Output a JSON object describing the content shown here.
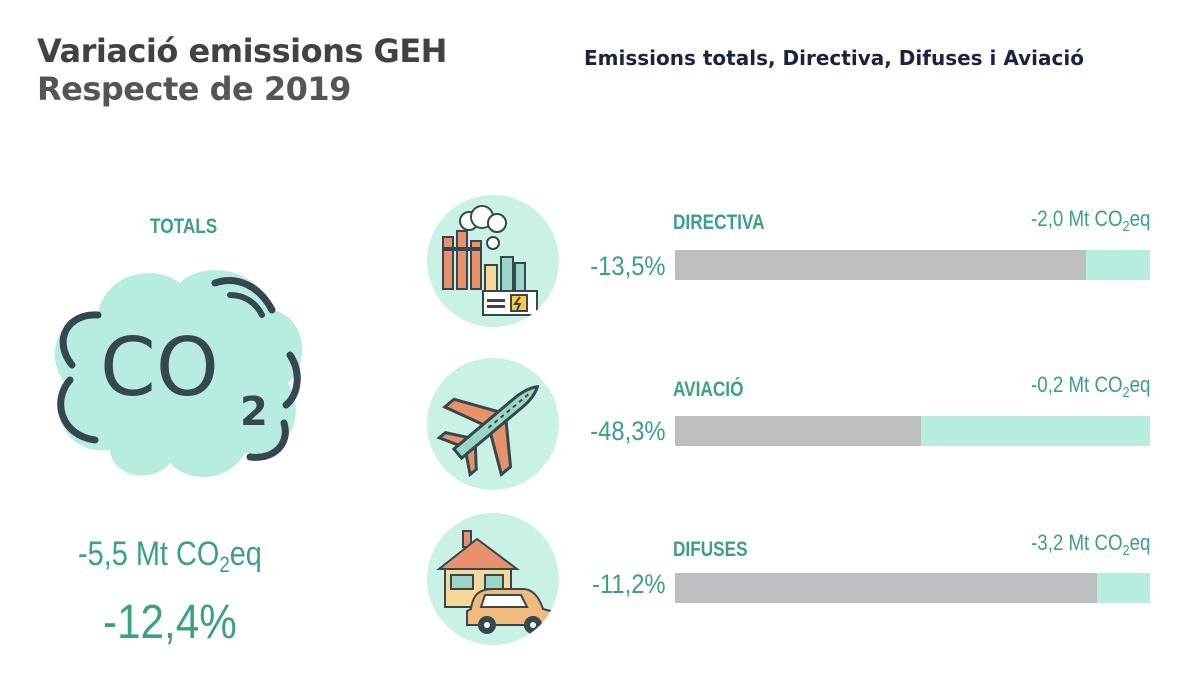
{
  "header": {
    "title": "Variació emissions GEH",
    "subtitle": "Respecte de 2019",
    "right_title": "Emissions totals, Directiva, Difuses i Aviació"
  },
  "colors": {
    "accent": "#3aa187",
    "bar_gray": "#bdbec2",
    "bar_mint": "#b6ede0",
    "circle_bg": "#c9f1e5",
    "title_dark": "#424242",
    "header_navy": "#1c2340"
  },
  "totals": {
    "label": "TOTALS",
    "icon": "co2-cloud-icon",
    "co2_text": "CO",
    "co2_sub": "2",
    "mt_prefix": "-5,5 Mt CO",
    "mt_sub": "2",
    "mt_suffix": "eq",
    "pct": "-12,4%"
  },
  "chart_data": {
    "type": "bar",
    "categories": [
      "DIRECTIVA",
      "AVIACIÓ",
      "DIFUSES"
    ],
    "values_pct": [
      -13.5,
      -48.3,
      -11.2
    ],
    "values_mt_co2eq": [
      -2.0,
      -0.2,
      -3.2
    ],
    "total_mt_co2eq": -5.5,
    "total_pct": -12.4
  },
  "rows": [
    {
      "label": "DIRECTIVA",
      "icon": "factory-icon",
      "pct_text": "-13,5%",
      "mt_prefix": "-2,0 Mt CO",
      "mt_sub": "2",
      "mt_suffix": "eq",
      "fill_fraction": 0.865
    },
    {
      "label": "AVIACIÓ",
      "icon": "airplane-icon",
      "pct_text": "-48,3%",
      "mt_prefix": "-0,2 Mt CO",
      "mt_sub": "2",
      "mt_suffix": "eq",
      "fill_fraction": 0.517
    },
    {
      "label": "DIFUSES",
      "icon": "house-car-icon",
      "pct_text": "-11,2%",
      "mt_prefix": "-3,2 Mt CO",
      "mt_sub": "2",
      "mt_suffix": "eq",
      "fill_fraction": 0.888
    }
  ]
}
